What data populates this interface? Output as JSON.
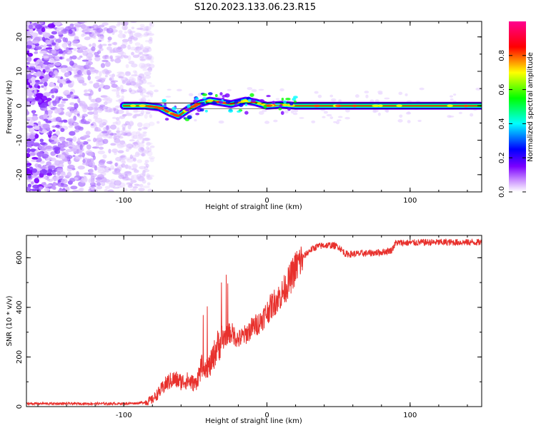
{
  "figure_title": "S120.2023.133.06.23.R15",
  "chart_data": [
    {
      "type": "heatmap",
      "title": "",
      "xlabel": "Height of straight line (km)",
      "ylabel": "Frequency (Hz)",
      "xlim": [
        -168,
        150
      ],
      "ylim": [
        -25,
        24.5
      ],
      "xticks": [
        -100,
        0,
        100
      ],
      "yticks": [
        -20,
        -10,
        0,
        10,
        20
      ],
      "grid": false,
      "colorbar": {
        "label": "Normalized spectral amplitude",
        "range": [
          0,
          1
        ],
        "ticks": [
          0.0,
          0.2,
          0.4,
          0.6,
          0.8
        ],
        "tick_labels": [
          "0.0",
          "0.2",
          "0.4",
          "0.6",
          "0.8"
        ],
        "colormap": [
          "#ffffff",
          "#7a00ff",
          "#0000ff",
          "#00ffff",
          "#00ff00",
          "#ffff00",
          "#ff0000",
          "#ff00aa"
        ]
      },
      "noise_region_x": [
        -168,
        -80
      ],
      "ridge": [
        {
          "x": -100,
          "y": 0.0
        },
        {
          "x": -85,
          "y": 0.0
        },
        {
          "x": -75,
          "y": -0.5
        },
        {
          "x": -68,
          "y": -2.0
        },
        {
          "x": -62,
          "y": -3.0
        },
        {
          "x": -55,
          "y": -1.0
        },
        {
          "x": -48,
          "y": 0.5
        },
        {
          "x": -40,
          "y": 1.5
        },
        {
          "x": -32,
          "y": 1.0
        },
        {
          "x": -25,
          "y": 0.5
        },
        {
          "x": -15,
          "y": 1.5
        },
        {
          "x": -8,
          "y": 1.0
        },
        {
          "x": 0,
          "y": 0.0
        },
        {
          "x": 10,
          "y": 0.3
        },
        {
          "x": 20,
          "y": 0.0
        },
        {
          "x": 50,
          "y": 0.0
        },
        {
          "x": 100,
          "y": 0.0
        },
        {
          "x": 150,
          "y": 0.0
        }
      ]
    },
    {
      "type": "line",
      "title": "",
      "xlabel": "Height of straight line (km)",
      "ylabel": "SNR (10 * v/v)",
      "xlim": [
        -168,
        150
      ],
      "ylim": [
        0,
        690
      ],
      "xticks": [
        -100,
        0,
        100
      ],
      "yticks": [
        0,
        200,
        400,
        600
      ],
      "grid": false,
      "line_color": "#e8312d",
      "series": [
        {
          "x": [
            -168,
            -150,
            -130,
            -110,
            -100,
            -90,
            -85,
            -80,
            -75,
            -70,
            -65,
            -60,
            -55,
            -50,
            -45,
            -40,
            -35,
            -30,
            -25,
            -20,
            -15,
            -10,
            -5,
            0,
            5,
            10,
            15,
            20,
            25,
            30,
            35,
            40,
            45,
            50,
            55,
            60,
            70,
            80,
            87,
            90,
            100,
            110,
            120,
            130,
            140,
            150
          ],
          "y": [
            12,
            12,
            12,
            12,
            12,
            14,
            18,
            28,
            60,
            95,
            110,
            100,
            105,
            90,
            170,
            160,
            240,
            280,
            300,
            270,
            290,
            320,
            340,
            380,
            420,
            450,
            500,
            560,
            600,
            630,
            645,
            650,
            650,
            645,
            615,
            615,
            618,
            622,
            630,
            660,
            660,
            662,
            662,
            662,
            662,
            662
          ]
        }
      ]
    }
  ]
}
